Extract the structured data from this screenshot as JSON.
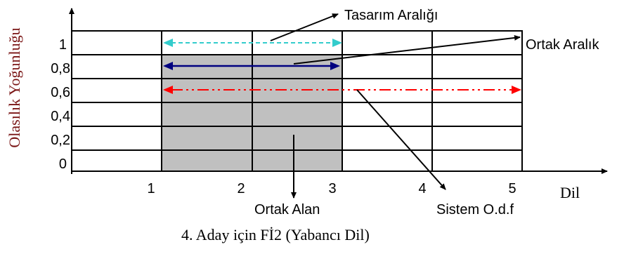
{
  "chart_data": {
    "type": "diagram",
    "x_axis": {
      "label": "Dil",
      "ticks": [
        "1",
        "2",
        "3",
        "4",
        "5"
      ]
    },
    "y_axis": {
      "label": "Olasılık Yoğunluğu",
      "ticks": [
        "1",
        "0,8",
        "0,6",
        "0,4",
        "0,2",
        "0"
      ]
    },
    "ranges": [
      {
        "label": "Tasarım Aralığı",
        "from": 1,
        "to": 3,
        "level": 1,
        "color": "#33cccc",
        "style": "dashed"
      },
      {
        "label": "Ortak Aralık",
        "from": 1,
        "to": 3,
        "level": 0.8,
        "color": "#000080",
        "style": "solid"
      },
      {
        "label": "Sistem O.d.f",
        "from": 1,
        "to": 5,
        "level": 0.6,
        "color": "#ff0000",
        "style": "dash-dot"
      }
    ],
    "common_area": {
      "label": "Ortak Alan",
      "from": 1,
      "to": 3,
      "color": "#c0c0c0"
    }
  },
  "caption": "4. Aday için Fİ2 (Yabancı Dil)"
}
